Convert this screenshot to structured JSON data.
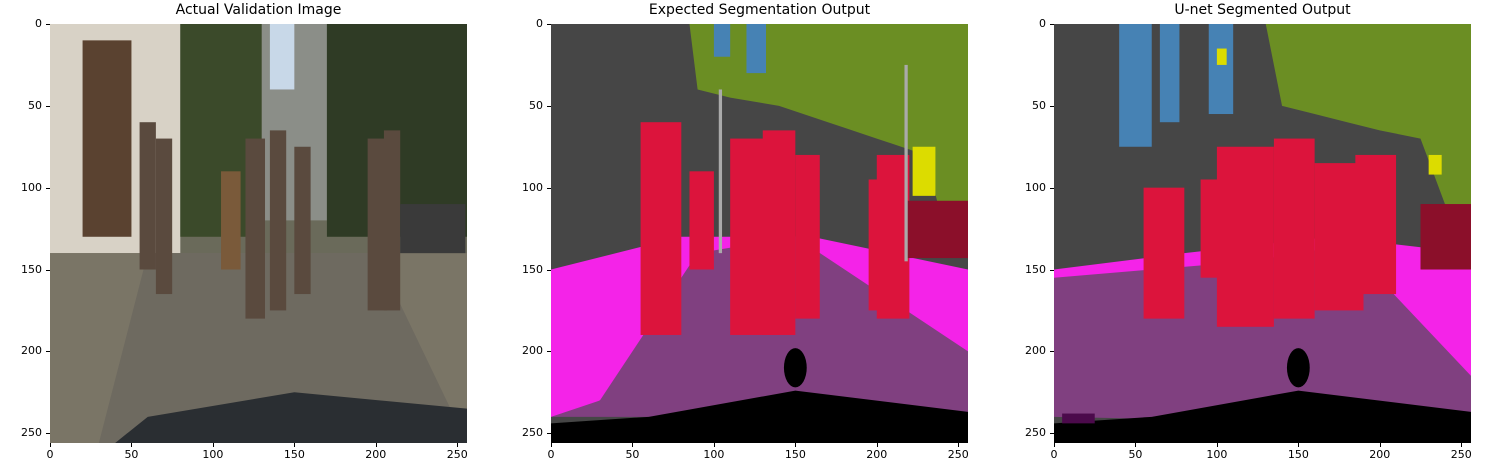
{
  "panels": [
    {
      "title": "Actual Validation Image"
    },
    {
      "title": "Expected Segmentation Output"
    },
    {
      "title": "U-net Segmented Output"
    }
  ],
  "axes": {
    "x_ticks": [
      "0",
      "50",
      "100",
      "150",
      "200",
      "250"
    ],
    "y_ticks": [
      "0",
      "50",
      "100",
      "150",
      "200",
      "250"
    ],
    "x_values": [
      0,
      50,
      100,
      150,
      200,
      250
    ],
    "y_values": [
      0,
      50,
      100,
      150,
      200,
      250
    ],
    "range": [
      0,
      256
    ]
  },
  "colors": {
    "road": "#804080",
    "sidewalk": "#f423e8",
    "building": "#464646",
    "vegetation": "#6b8e23",
    "sky": "#4682b4",
    "person": "#dc143c",
    "car_hood": "#000000",
    "sign": "#dcdc00",
    "vehicle": "#8b0f2a"
  }
}
